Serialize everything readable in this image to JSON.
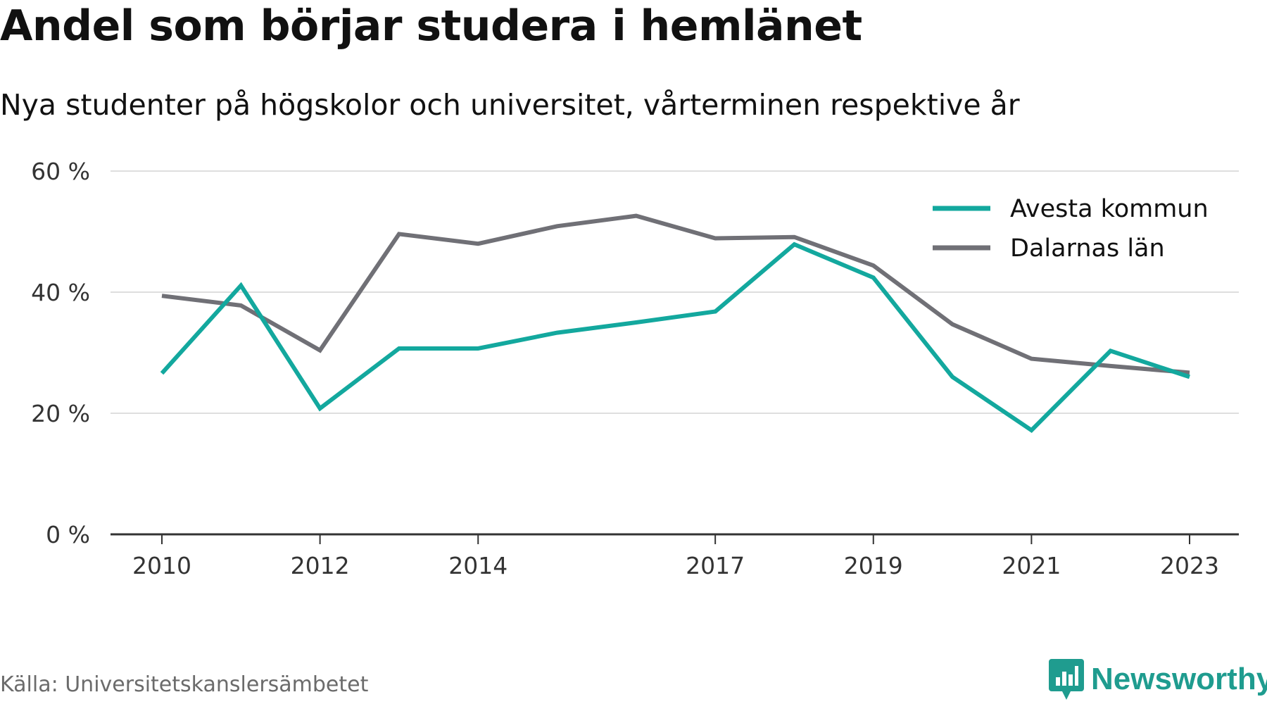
{
  "title": "Andel som börjar studera i hemlänet",
  "subtitle": "Nya studenter på högskolor och universitet, vårterminen respektive år",
  "source": "Källa: Universitetskanslersämbetet",
  "brand": "Newsworthy",
  "chart_data": {
    "type": "line",
    "title": "Andel som börjar studera i hemlänet",
    "subtitle": "Nya studenter på högskolor och universitet, vårterminen respektive år",
    "x": [
      2010,
      2011,
      2012,
      2013,
      2014,
      2015,
      2016,
      2017,
      2018,
      2019,
      2020,
      2021,
      2022,
      2023
    ],
    "x_tick_labels": [
      "2010",
      "2012",
      "2014",
      "2017",
      "2019",
      "2021",
      "2023"
    ],
    "x_tick_values": [
      2010,
      2012,
      2014,
      2017,
      2019,
      2021,
      2023
    ],
    "y_tick_labels": [
      "0 %",
      "20 %",
      "40 %",
      "60 %"
    ],
    "y_tick_values": [
      0,
      20,
      40,
      60
    ],
    "ylim": [
      0,
      60
    ],
    "grid": true,
    "legend_position": "top-right",
    "series": [
      {
        "name": "Avesta kommun",
        "color": "#13a89e",
        "values": [
          26.6,
          41.1,
          20.8,
          30.7,
          30.7,
          33.3,
          35.0,
          36.8,
          47.9,
          42.4,
          26.0,
          17.2,
          30.3,
          26.0
        ]
      },
      {
        "name": "Dalarnas län",
        "color": "#707076",
        "values": [
          39.4,
          37.8,
          30.4,
          49.6,
          48.0,
          50.9,
          52.6,
          48.9,
          49.1,
          44.4,
          34.7,
          29.0,
          27.8,
          26.7
        ]
      }
    ]
  }
}
